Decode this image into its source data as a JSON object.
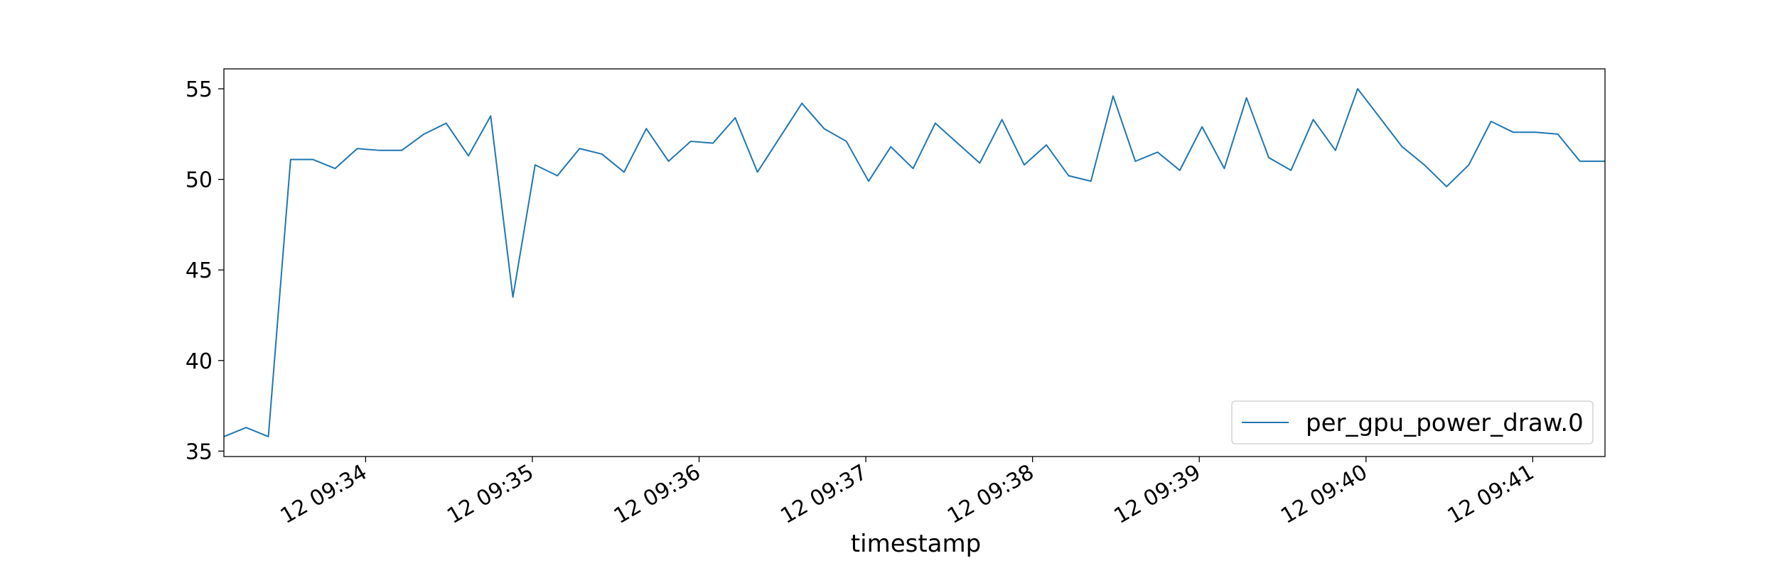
{
  "chart_data": {
    "type": "line",
    "title": "",
    "xlabel": "timestamp",
    "ylabel": "",
    "x_tick_labels": [
      "12 09:34",
      "12 09:35",
      "12 09:36",
      "12 09:37",
      "12 09:38",
      "12 09:39",
      "12 09:40",
      "12 09:41"
    ],
    "x_tick_values": [
      "09:34:00",
      "09:35:00",
      "09:36:00",
      "09:37:00",
      "09:38:00",
      "09:39:00",
      "09:40:00",
      "09:41:00"
    ],
    "y_ticks": [
      35,
      40,
      45,
      50,
      55
    ],
    "xlim": [
      "09:33:09",
      "09:41:26"
    ],
    "ylim": [
      34.7,
      56.1
    ],
    "grid": false,
    "legend_position": "lower-right",
    "series": [
      {
        "name": "per_gpu_power_draw.0",
        "color": "#1f77b4",
        "x": [
          "09:33:09",
          "09:33:17",
          "09:33:25",
          "09:33:33",
          "09:33:41",
          "09:33:49",
          "09:33:57",
          "09:34:05",
          "09:34:13",
          "09:34:21",
          "09:34:29",
          "09:34:37",
          "09:34:45",
          "09:34:53",
          "09:35:01",
          "09:35:09",
          "09:35:17",
          "09:35:25",
          "09:35:33",
          "09:35:41",
          "09:35:49",
          "09:35:57",
          "09:36:05",
          "09:36:13",
          "09:36:21",
          "09:36:29",
          "09:36:37",
          "09:36:45",
          "09:36:53",
          "09:37:01",
          "09:37:09",
          "09:37:17",
          "09:37:25",
          "09:37:33",
          "09:37:41",
          "09:37:49",
          "09:37:57",
          "09:38:05",
          "09:38:13",
          "09:38:21",
          "09:38:29",
          "09:38:37",
          "09:38:45",
          "09:38:53",
          "09:39:01",
          "09:39:09",
          "09:39:17",
          "09:39:25",
          "09:39:33",
          "09:39:41",
          "09:39:49",
          "09:39:57",
          "09:40:05",
          "09:40:13",
          "09:40:21",
          "09:40:29",
          "09:40:37",
          "09:40:45",
          "09:40:53",
          "09:41:01",
          "09:41:09",
          "09:41:17",
          "09:41:26"
        ],
        "y": [
          35.8,
          36.3,
          35.8,
          51.1,
          51.1,
          50.6,
          51.7,
          51.6,
          51.6,
          52.5,
          53.1,
          51.3,
          53.5,
          43.5,
          50.8,
          50.2,
          51.7,
          51.4,
          50.4,
          52.8,
          51.0,
          52.1,
          52.0,
          53.4,
          50.4,
          52.3,
          54.2,
          52.8,
          52.1,
          49.9,
          51.8,
          50.6,
          53.1,
          52.0,
          50.9,
          53.3,
          50.8,
          51.9,
          50.2,
          49.9,
          54.6,
          51.0,
          51.5,
          50.5,
          52.9,
          50.6,
          54.5,
          51.2,
          50.5,
          53.3,
          51.6,
          55.0,
          53.4,
          51.8,
          50.8,
          49.6,
          50.8,
          53.2,
          52.6,
          52.6,
          52.5,
          51.0,
          51.0
        ]
      }
    ]
  }
}
